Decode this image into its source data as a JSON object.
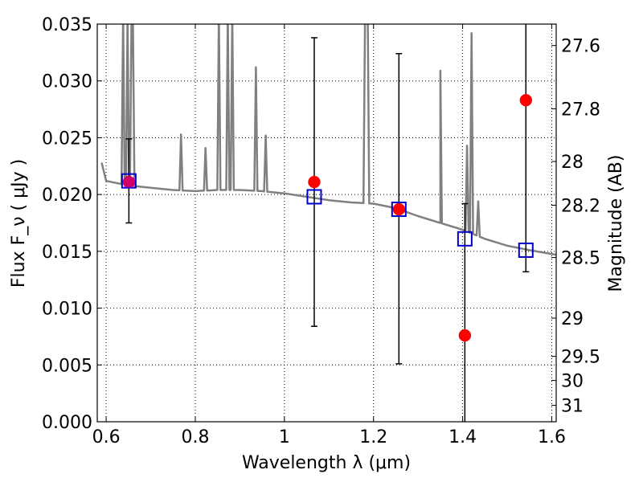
{
  "chart_data": {
    "type": "scatter",
    "xlabel": "Wavelength  λ (μm)",
    "ylabel": "Flux  F_ν  ( μJy )",
    "y2label": "Magnitude (AB)",
    "xlim": [
      0.58,
      1.61
    ],
    "ylim": [
      0.0,
      0.035
    ],
    "grid": true,
    "x_ticks": [
      0.6,
      0.8,
      1.0,
      1.2,
      1.4,
      1.6
    ],
    "x_tick_labels": [
      "0.6",
      "0.8",
      "1",
      "1.2",
      "1.4",
      "1.6"
    ],
    "y_ticks": [
      0.0,
      0.005,
      0.01,
      0.015,
      0.02,
      0.025,
      0.03,
      0.035
    ],
    "y_tick_labels": [
      "0.000",
      "0.005",
      "0.010",
      "0.015",
      "0.020",
      "0.025",
      "0.030",
      "0.035"
    ],
    "mag_ticks": [
      27.6,
      27.8,
      28,
      28.2,
      28.5,
      29,
      29.5,
      30,
      31
    ],
    "mag_tick_labels": [
      "27.6",
      "27.8",
      "28",
      "28.2",
      "28.5",
      "29",
      "29.5",
      "30",
      "31"
    ],
    "template_spectrum": {
      "color": "#808080",
      "continuum": [
        [
          0.59,
          0.0228
        ],
        [
          0.6,
          0.0212
        ],
        [
          0.65,
          0.0208
        ],
        [
          0.7,
          0.0206
        ],
        [
          0.75,
          0.0204
        ],
        [
          0.8,
          0.0203
        ],
        [
          0.85,
          0.0204
        ],
        [
          0.9,
          0.0204
        ],
        [
          0.95,
          0.0203
        ],
        [
          1.0,
          0.0201
        ],
        [
          1.05,
          0.0198
        ],
        [
          1.1,
          0.0195
        ],
        [
          1.15,
          0.0193
        ],
        [
          1.2,
          0.0192
        ],
        [
          1.25,
          0.0188
        ],
        [
          1.3,
          0.0181
        ],
        [
          1.35,
          0.0175
        ],
        [
          1.4,
          0.0169
        ],
        [
          1.45,
          0.0161
        ],
        [
          1.5,
          0.0155
        ],
        [
          1.55,
          0.0151
        ],
        [
          1.61,
          0.0147
        ]
      ],
      "lines": [
        [
          0.638,
          0.036
        ],
        [
          0.648,
          0.036
        ],
        [
          0.657,
          0.036
        ],
        [
          0.66,
          0.036
        ],
        [
          0.768,
          0.0253
        ],
        [
          0.823,
          0.0241
        ],
        [
          0.853,
          0.036
        ],
        [
          0.873,
          0.036
        ],
        [
          0.883,
          0.036
        ],
        [
          0.936,
          0.0312
        ],
        [
          0.958,
          0.0252
        ],
        [
          1.181,
          0.036
        ],
        [
          1.187,
          0.036
        ],
        [
          1.35,
          0.0309
        ],
        [
          1.41,
          0.0243
        ],
        [
          1.42,
          0.0342
        ],
        [
          1.435,
          0.0194
        ]
      ]
    },
    "series": [
      {
        "marker": "square",
        "color": "#0000cc",
        "x": [
          0.651,
          1.067,
          1.257,
          1.405,
          1.542
        ],
        "y": [
          0.0212,
          0.0198,
          0.0187,
          0.0161,
          0.0151
        ]
      },
      {
        "marker": "circle",
        "color": "#ff0000",
        "x": [
          0.651,
          1.067,
          1.257,
          1.405,
          1.542
        ],
        "y": [
          0.0211,
          0.0211,
          0.0187,
          0.0076,
          0.0283
        ],
        "yerr_low": [
          0.0036,
          0.0127,
          0.0136,
          0.0076,
          0.0151
        ],
        "yerr_high": [
          0.0038,
          0.0127,
          0.0137,
          0.0116,
          0.0077
        ]
      }
    ]
  }
}
